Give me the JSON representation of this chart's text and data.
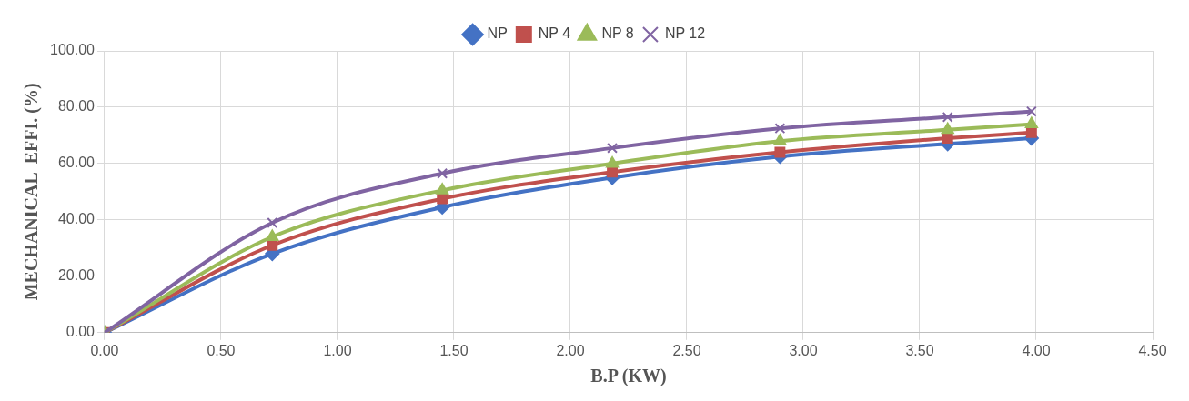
{
  "chart_data": {
    "type": "line",
    "xlabel": "B.P (KW)",
    "ylabel": "MECHANICAL  EFFI. (%)",
    "x": [
      0,
      0.72,
      1.45,
      2.18,
      2.9,
      3.62,
      3.98
    ],
    "series": [
      {
        "name": "NP",
        "color": "#4472c4",
        "marker": "diamond",
        "values": [
          0,
          28,
          44.5,
          55,
          62.5,
          67,
          69
        ]
      },
      {
        "name": "NP 4",
        "color": "#c0504d",
        "marker": "square",
        "values": [
          0,
          31,
          47.5,
          57,
          64,
          69,
          71
        ]
      },
      {
        "name": "NP 8",
        "color": "#9bbb59",
        "marker": "triangle",
        "values": [
          0,
          34,
          50.5,
          60,
          68,
          72,
          74
        ]
      },
      {
        "name": "NP 12",
        "color": "#8064a2",
        "marker": "cross",
        "values": [
          0,
          39,
          56.5,
          65.5,
          72.5,
          76.5,
          78.5
        ]
      }
    ],
    "xlim": [
      0,
      4.5
    ],
    "ylim": [
      0,
      100
    ],
    "xticks": [
      {
        "value": 0,
        "label": "0.00"
      },
      {
        "value": 0.5,
        "label": "0.50"
      },
      {
        "value": 1,
        "label": "1.00"
      },
      {
        "value": 1.5,
        "label": "1.50"
      },
      {
        "value": 2,
        "label": "2.00"
      },
      {
        "value": 2.5,
        "label": "2.50"
      },
      {
        "value": 3,
        "label": "3.00"
      },
      {
        "value": 3.5,
        "label": "3.50"
      },
      {
        "value": 4,
        "label": "4.00"
      },
      {
        "value": 4.5,
        "label": "4.50"
      }
    ],
    "yticks": [
      {
        "value": 0,
        "label": "0.00"
      },
      {
        "value": 20,
        "label": "20.00"
      },
      {
        "value": 40,
        "label": "40.00"
      },
      {
        "value": 60,
        "label": "60.00"
      },
      {
        "value": 80,
        "label": "80.00"
      },
      {
        "value": 100,
        "label": "100.00"
      }
    ],
    "grid": true,
    "legend": "top",
    "line_style": "solid"
  }
}
